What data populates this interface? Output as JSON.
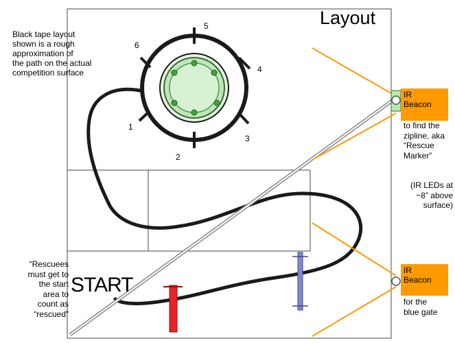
{
  "title": "Layout",
  "notes": {
    "path_note": "Black tape layout\nshown is a rough\napproximation of\nthe path on the actual\ncompetition surface",
    "rescue_note": "“Rescuees\nmust get to\nthe start\narea to\ncount as\n“rescued”"
  },
  "start_label": "START",
  "ring_numbers": [
    "1",
    "2",
    "3",
    "4",
    "5",
    "6"
  ],
  "beacons": {
    "top": {
      "label": "IR\nBeacon",
      "description": "to find the\nzipline, aka\n“Rescue\n Marker”"
    },
    "bottom": {
      "label": "IR\nBeacon",
      "description": "for the\nblue gate"
    },
    "ir_note": "(IR LEDs at\n~8” above\nsurface)"
  },
  "colors": {
    "orange": "#ff9a00",
    "red_gate": "#e8232a",
    "blue_gate": "#8088d0",
    "green_core": "#cdeec9",
    "tape": "#1a1a1a"
  }
}
